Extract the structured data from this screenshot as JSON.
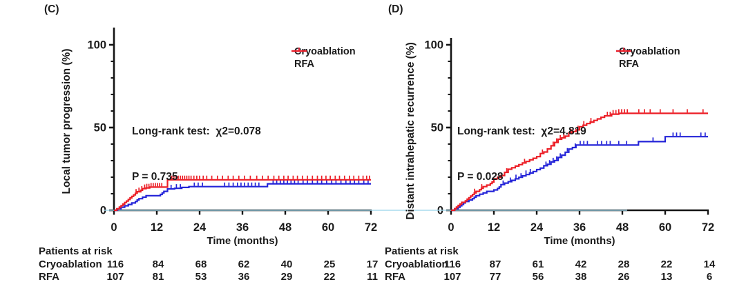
{
  "figure": {
    "background": "#ffffff",
    "zero_guide_color": "#9fd6ec",
    "axis_color": "#141414"
  },
  "chart_data": [
    {
      "type": "line",
      "subtype": "kaplan-meier-cumulative-incidence-step",
      "panel_label": "(C)",
      "ylabel": "Local tumor progression (%)",
      "xlabel": "Time (months)",
      "xlim": [
        0,
        72
      ],
      "ylim": [
        0,
        110
      ],
      "x_ticks": [
        0,
        12,
        24,
        36,
        48,
        60,
        72
      ],
      "y_major_ticks": [
        0,
        50,
        100
      ],
      "y_minor_step": 10,
      "grid": false,
      "legend_position": "top-right",
      "annotation": {
        "line1": "Long-rank test:  χ2=0.078",
        "line2": "P = 0.735"
      },
      "series": [
        {
          "name": "Cryoablation",
          "color": "#2424d8",
          "steps": [
            [
              0,
              0
            ],
            [
              1,
              0.9
            ],
            [
              2,
              1.8
            ],
            [
              3,
              2.7
            ],
            [
              4,
              3.5
            ],
            [
              5,
              4.4
            ],
            [
              6,
              5.3
            ],
            [
              6.5,
              6.2
            ],
            [
              7,
              7
            ],
            [
              8,
              7.9
            ],
            [
              9,
              8.8
            ],
            [
              13,
              9.6
            ],
            [
              13.5,
              10.5
            ],
            [
              14,
              11.4
            ],
            [
              15,
              12.9
            ],
            [
              17,
              13.3
            ],
            [
              19,
              13.8
            ],
            [
              21,
              14.3
            ],
            [
              43,
              16
            ],
            [
              72,
              16
            ]
          ],
          "censor_ticks": [
            16,
            17.5,
            18.6,
            22.5,
            23.6,
            24.8,
            31,
            32.2,
            33.4,
            34.6,
            35.6,
            36.6,
            37.6,
            38.6,
            39.6,
            40.6,
            44.6,
            45.6,
            46.6,
            47.6,
            48.6,
            49.6,
            50.6,
            51.6,
            53,
            54.2,
            55.6,
            57,
            58.2,
            59.6,
            61,
            62.2,
            63.6,
            65,
            66.2,
            67.4,
            68.6,
            70,
            71.2
          ]
        },
        {
          "name": "RFA",
          "color": "#ec1e26",
          "steps": [
            [
              0,
              0
            ],
            [
              0.8,
              0.9
            ],
            [
              1.5,
              1.9
            ],
            [
              2,
              2.8
            ],
            [
              2.5,
              3.7
            ],
            [
              3,
              4.7
            ],
            [
              3.5,
              5.6
            ],
            [
              4,
              6.5
            ],
            [
              4.5,
              7.5
            ],
            [
              5,
              8.4
            ],
            [
              5.5,
              9.3
            ],
            [
              6,
              10.3
            ],
            [
              6.5,
              11.2
            ],
            [
              7.5,
              12.1
            ],
            [
              8,
              13.1
            ],
            [
              9,
              13.5
            ],
            [
              10,
              14
            ],
            [
              15,
              18.4
            ],
            [
              72,
              18.4
            ]
          ],
          "censor_ticks": [
            6.2,
            7,
            7.8,
            8.6,
            9.2,
            9.8,
            10.4,
            11,
            11.6,
            12.2,
            12.8,
            13.4,
            16.2,
            16.8,
            17.4,
            18,
            18.6,
            19.2,
            19.8,
            20.4,
            21,
            21.6,
            22.4,
            23.2,
            24,
            25,
            26,
            27.4,
            29,
            30.4,
            32,
            33.4,
            35,
            36.6,
            38.2,
            40,
            41.6,
            43.2,
            44.8,
            46.2,
            47.6,
            48.8,
            50.2,
            51.4,
            52.8,
            54.2,
            55.6,
            57,
            58.2,
            59.4,
            60.6,
            62,
            63.2,
            64.6,
            66,
            67.2,
            68.6,
            69.8,
            70.8,
            71.6
          ]
        }
      ],
      "at_risk": {
        "title": "Patients at risk",
        "rows": [
          {
            "label": "Cryoablation",
            "counts": [
              116,
              84,
              68,
              62,
              40,
              25,
              17
            ]
          },
          {
            "label": "RFA",
            "counts": [
              107,
              81,
              53,
              36,
              29,
              22,
              11
            ]
          }
        ]
      }
    },
    {
      "type": "line",
      "subtype": "kaplan-meier-cumulative-incidence-step",
      "panel_label": "(D)",
      "ylabel": "Distant intrahepatic recurrence (%)",
      "xlabel": "Time (months)",
      "xlim": [
        0,
        72
      ],
      "ylim": [
        0,
        104
      ],
      "x_ticks": [
        0,
        12,
        24,
        36,
        48,
        60,
        72
      ],
      "y_major_ticks": [
        0,
        50,
        100
      ],
      "y_minor_step": 10,
      "grid": false,
      "legend_position": "top-right",
      "annotation": {
        "line1": "Long-rank test:  χ2=4.819",
        "line2": "P = 0.028"
      },
      "series": [
        {
          "name": "Cryoablation",
          "color": "#2424d8",
          "steps": [
            [
              0,
              0
            ],
            [
              1,
              0.9
            ],
            [
              2,
              1.8
            ],
            [
              2.5,
              2.7
            ],
            [
              3,
              3.5
            ],
            [
              3.5,
              4.4
            ],
            [
              4,
              5.3
            ],
            [
              5,
              6.2
            ],
            [
              6,
              7
            ],
            [
              6.5,
              7.9
            ],
            [
              7,
              8.8
            ],
            [
              8,
              9.7
            ],
            [
              9,
              10.5
            ],
            [
              10,
              11.4
            ],
            [
              12,
              12.3
            ],
            [
              13,
              13.2
            ],
            [
              13.5,
              14.1
            ],
            [
              14,
              15.5
            ],
            [
              15,
              16.4
            ],
            [
              16,
              17.3
            ],
            [
              17,
              18.1
            ],
            [
              18,
              19
            ],
            [
              19,
              19.9
            ],
            [
              20,
              20.8
            ],
            [
              21,
              21.6
            ],
            [
              22,
              22.5
            ],
            [
              23,
              23.4
            ],
            [
              24,
              24.6
            ],
            [
              25,
              25.5
            ],
            [
              26,
              26.9
            ],
            [
              27,
              27.8
            ],
            [
              28,
              29.2
            ],
            [
              29,
              30.1
            ],
            [
              30,
              31.9
            ],
            [
              31,
              33.3
            ],
            [
              32,
              35.1
            ],
            [
              33,
              37
            ],
            [
              34,
              37.9
            ],
            [
              35,
              39.4
            ],
            [
              52.5,
              41.5
            ],
            [
              60,
              44.5
            ],
            [
              72,
              44.5
            ]
          ],
          "censor_ticks": [
            14.6,
            16.6,
            18.2,
            19.6,
            21,
            22.2,
            26.6,
            27.6,
            28.6,
            29.6,
            30.6,
            32.6,
            34.8,
            36.2,
            37.2,
            38.2,
            41,
            42.2,
            43.6,
            44.6,
            47,
            49.2,
            56.6,
            62.2,
            63.2,
            64.2,
            70,
            71.2
          ]
        },
        {
          "name": "RFA",
          "color": "#ec1e26",
          "steps": [
            [
              0,
              0
            ],
            [
              1,
              1
            ],
            [
              1.5,
              1.9
            ],
            [
              2,
              2.9
            ],
            [
              2.5,
              3.8
            ],
            [
              3,
              4.8
            ],
            [
              4,
              5.7
            ],
            [
              4.5,
              6.7
            ],
            [
              5,
              7.6
            ],
            [
              5.5,
              8.6
            ],
            [
              6,
              9.5
            ],
            [
              6.5,
              10.5
            ],
            [
              7,
              11.4
            ],
            [
              8,
              12.4
            ],
            [
              8.5,
              13.3
            ],
            [
              9,
              14.3
            ],
            [
              10,
              15.2
            ],
            [
              11,
              16.2
            ],
            [
              11.5,
              17.1
            ],
            [
              12,
              19
            ],
            [
              13,
              20
            ],
            [
              14,
              21
            ],
            [
              15,
              22.9
            ],
            [
              16,
              24.8
            ],
            [
              17,
              25.7
            ],
            [
              18,
              26.7
            ],
            [
              19,
              27.6
            ],
            [
              20,
              28.6
            ],
            [
              21,
              29.5
            ],
            [
              22,
              30.5
            ],
            [
              23,
              31.4
            ],
            [
              24,
              32.4
            ],
            [
              25,
              34.3
            ],
            [
              26,
              35.2
            ],
            [
              27,
              37.1
            ],
            [
              28,
              39
            ],
            [
              29,
              41
            ],
            [
              30,
              42.9
            ],
            [
              31,
              43.8
            ],
            [
              32,
              44.8
            ],
            [
              33,
              46.7
            ],
            [
              34,
              47.6
            ],
            [
              35,
              48.6
            ],
            [
              36,
              50.5
            ],
            [
              37,
              51.4
            ],
            [
              38,
              52.4
            ],
            [
              39,
              53.3
            ],
            [
              40,
              54.3
            ],
            [
              41,
              55.2
            ],
            [
              42,
              56.2
            ],
            [
              43,
              57.1
            ],
            [
              45,
              58.1
            ],
            [
              47,
              58.6
            ],
            [
              72,
              58.6
            ]
          ],
          "censor_ticks": [
            6.6,
            8.6,
            15.6,
            20.6,
            25.6,
            28.6,
            29.6,
            30.6,
            31.6,
            33.6,
            35.6,
            37.2,
            39.2,
            43.8,
            44.6,
            45.4,
            46.2,
            47,
            47.8,
            48.6,
            49.4,
            52.6,
            54.2,
            55.8,
            58.6,
            62.2,
            66.2,
            70.6
          ]
        }
      ],
      "at_risk": {
        "title": "Patients at risk",
        "rows": [
          {
            "label": "Cryoablation",
            "counts": [
              116,
              87,
              61,
              42,
              28,
              22,
              14
            ]
          },
          {
            "label": "RFA",
            "counts": [
              107,
              77,
              56,
              38,
              26,
              13,
              6
            ]
          }
        ]
      }
    }
  ]
}
